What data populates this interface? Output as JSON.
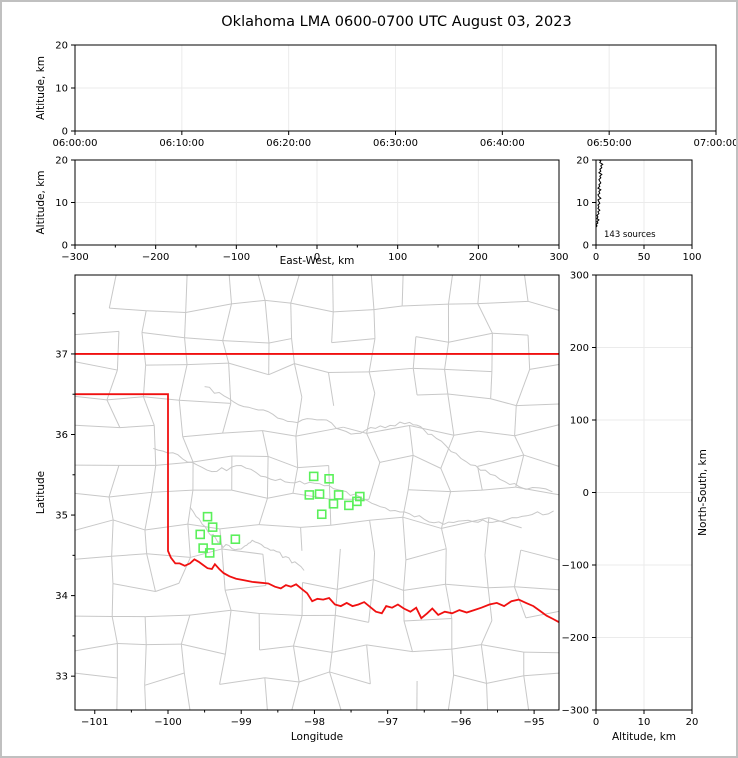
{
  "title": "Oklahoma LMA 0600-0700 UTC August 03, 2023",
  "colors": {
    "axis": "#000000",
    "grid": "#ebebeb",
    "county_line": "#c8c8c8",
    "state_border": "#f01010",
    "source_marker": "#5af05a",
    "histogram_line": "#000000"
  },
  "chart_data": [
    {
      "id": "time_height",
      "type": "scatter",
      "desc": "altitude vs time, no visible sources",
      "xlim": [
        0,
        3600
      ],
      "ylim": [
        0,
        20
      ],
      "xticks": [
        [
          0,
          "06:00:00"
        ],
        [
          600,
          "06:10:00"
        ],
        [
          1200,
          "06:20:00"
        ],
        [
          1800,
          "06:30:00"
        ],
        [
          2400,
          "06:40:00"
        ],
        [
          3000,
          "06:50:00"
        ],
        [
          3600,
          "07:00:00"
        ]
      ],
      "yticks": [
        [
          0,
          "0"
        ],
        [
          10,
          "10"
        ],
        [
          20,
          "20"
        ]
      ],
      "ylabel": "Altitude, km",
      "points": []
    },
    {
      "id": "ew_height",
      "type": "scatter",
      "desc": "altitude vs east-west distance, no visible sources",
      "xlim": [
        -300,
        300
      ],
      "ylim": [
        0,
        20
      ],
      "xticks": [
        [
          -300,
          "−300"
        ],
        [
          -200,
          "−200"
        ],
        [
          -100,
          "−100"
        ],
        [
          0,
          "0"
        ],
        [
          100,
          "100"
        ],
        [
          200,
          "200"
        ],
        [
          300,
          "300"
        ]
      ],
      "xminor": [
        -250,
        -150,
        -50,
        50,
        150,
        250
      ],
      "yticks": [
        [
          0,
          "0"
        ],
        [
          10,
          "10"
        ],
        [
          20,
          "20"
        ]
      ],
      "xlabel": "East-West, km",
      "xlabelpad": 19,
      "ylabel": "Altitude, km",
      "points": []
    },
    {
      "id": "alt_hist",
      "type": "line",
      "desc": "source count profile vs altitude",
      "xlim": [
        0,
        100
      ],
      "ylim": [
        0,
        20
      ],
      "xticks": [
        [
          0,
          "0"
        ],
        [
          50,
          "50"
        ],
        [
          100,
          "100"
        ]
      ],
      "yticks": [
        [
          0,
          "0"
        ],
        [
          10,
          "10"
        ],
        [
          20,
          "20"
        ]
      ],
      "annotation": "143 sources",
      "profile_alt_count": [
        [
          0,
          0
        ],
        [
          4.2,
          0
        ],
        [
          4.5,
          1
        ],
        [
          4.8,
          0
        ],
        [
          5.2,
          2
        ],
        [
          5.5,
          1
        ],
        [
          5.9,
          3
        ],
        [
          6.2,
          1
        ],
        [
          6.6,
          2
        ],
        [
          7.0,
          1
        ],
        [
          7.4,
          3
        ],
        [
          7.8,
          2
        ],
        [
          8.2,
          4
        ],
        [
          8.6,
          2
        ],
        [
          9.0,
          3
        ],
        [
          9.4,
          2
        ],
        [
          9.8,
          4
        ],
        [
          10.2,
          3
        ],
        [
          10.6,
          2
        ],
        [
          11.0,
          5
        ],
        [
          11.4,
          3
        ],
        [
          11.8,
          2
        ],
        [
          12.2,
          4
        ],
        [
          12.6,
          3
        ],
        [
          13.0,
          5
        ],
        [
          13.4,
          2
        ],
        [
          13.8,
          4
        ],
        [
          14.2,
          3
        ],
        [
          14.6,
          5
        ],
        [
          15.0,
          4
        ],
        [
          15.4,
          3
        ],
        [
          15.8,
          5
        ],
        [
          16.2,
          4
        ],
        [
          16.6,
          6
        ],
        [
          17.0,
          3
        ],
        [
          17.4,
          5
        ],
        [
          17.8,
          4
        ],
        [
          18.2,
          6
        ],
        [
          18.6,
          5
        ],
        [
          19.0,
          7
        ],
        [
          19.4,
          4
        ],
        [
          19.8,
          5
        ],
        [
          20,
          3
        ]
      ]
    },
    {
      "id": "map",
      "type": "scatter",
      "desc": "plan view map of Oklahoma with LMA source locations",
      "xlim": [
        -101.27,
        -94.66
      ],
      "ylim": [
        32.58,
        37.98
      ],
      "xticks": [
        [
          -101,
          "−101"
        ],
        [
          -100,
          "−100"
        ],
        [
          -99,
          "−99"
        ],
        [
          -98,
          "−98"
        ],
        [
          -97,
          "−97"
        ],
        [
          -96,
          "−96"
        ],
        [
          -95,
          "−95"
        ]
      ],
      "xminor": [
        -100.5,
        -99.5,
        -98.5,
        -97.5,
        -96.5,
        -95.5
      ],
      "yticks": [
        [
          33,
          "33"
        ],
        [
          34,
          "34"
        ],
        [
          35,
          "35"
        ],
        [
          36,
          "36"
        ],
        [
          37,
          "37"
        ]
      ],
      "yminor": [
        33.5,
        34.5,
        35.5,
        36.5,
        37.5
      ],
      "xlabel": "Longitude",
      "xlabelpad": 30,
      "ylabel": "Latitude",
      "sources_lon_lat": [
        [
          -99.46,
          34.98
        ],
        [
          -99.39,
          34.85
        ],
        [
          -99.56,
          34.76
        ],
        [
          -99.34,
          34.69
        ],
        [
          -99.08,
          34.7
        ],
        [
          -99.52,
          34.59
        ],
        [
          -99.43,
          34.53
        ],
        [
          -98.01,
          35.48
        ],
        [
          -97.8,
          35.45
        ],
        [
          -98.07,
          35.25
        ],
        [
          -97.93,
          35.26
        ],
        [
          -97.67,
          35.25
        ],
        [
          -97.74,
          35.14
        ],
        [
          -97.53,
          35.12
        ],
        [
          -97.42,
          35.17
        ],
        [
          -97.38,
          35.23
        ],
        [
          -97.9,
          35.01
        ]
      ],
      "state_border": {
        "north_lat": 37.0,
        "panhandle_south_lat": 36.5,
        "west_lon": -100.0,
        "west_bottom_lat": 34.555,
        "red_river_lon_lat": [
          [
            -100.0,
            34.555
          ],
          [
            -99.96,
            34.47
          ],
          [
            -99.9,
            34.4
          ],
          [
            -99.84,
            34.4
          ],
          [
            -99.77,
            34.37
          ],
          [
            -99.7,
            34.4
          ],
          [
            -99.64,
            34.45
          ],
          [
            -99.58,
            34.42
          ],
          [
            -99.52,
            34.38
          ],
          [
            -99.46,
            34.34
          ],
          [
            -99.4,
            34.33
          ],
          [
            -99.36,
            34.39
          ],
          [
            -99.3,
            34.33
          ],
          [
            -99.24,
            34.28
          ],
          [
            -99.16,
            34.24
          ],
          [
            -99.07,
            34.21
          ],
          [
            -98.96,
            34.19
          ],
          [
            -98.85,
            34.17
          ],
          [
            -98.74,
            34.16
          ],
          [
            -98.63,
            34.15
          ],
          [
            -98.54,
            34.11
          ],
          [
            -98.46,
            34.09
          ],
          [
            -98.39,
            34.13
          ],
          [
            -98.32,
            34.11
          ],
          [
            -98.25,
            34.14
          ],
          [
            -98.17,
            34.08
          ],
          [
            -98.1,
            34.03
          ],
          [
            -98.03,
            33.93
          ],
          [
            -97.96,
            33.96
          ],
          [
            -97.88,
            33.95
          ],
          [
            -97.8,
            33.97
          ],
          [
            -97.72,
            33.89
          ],
          [
            -97.64,
            33.87
          ],
          [
            -97.56,
            33.91
          ],
          [
            -97.48,
            33.87
          ],
          [
            -97.4,
            33.89
          ],
          [
            -97.32,
            33.92
          ],
          [
            -97.24,
            33.86
          ],
          [
            -97.16,
            33.8
          ],
          [
            -97.08,
            33.78
          ],
          [
            -97.02,
            33.87
          ],
          [
            -96.94,
            33.85
          ],
          [
            -96.86,
            33.89
          ],
          [
            -96.78,
            33.84
          ],
          [
            -96.69,
            33.8
          ],
          [
            -96.61,
            33.85
          ],
          [
            -96.54,
            33.72
          ],
          [
            -96.46,
            33.78
          ],
          [
            -96.39,
            33.84
          ],
          [
            -96.31,
            33.76
          ],
          [
            -96.22,
            33.8
          ],
          [
            -96.12,
            33.78
          ],
          [
            -96.02,
            33.82
          ],
          [
            -95.92,
            33.79
          ],
          [
            -95.82,
            33.82
          ],
          [
            -95.72,
            33.85
          ],
          [
            -95.61,
            33.89
          ],
          [
            -95.51,
            33.91
          ],
          [
            -95.41,
            33.87
          ],
          [
            -95.31,
            33.93
          ],
          [
            -95.21,
            33.95
          ],
          [
            -95.11,
            33.91
          ],
          [
            -95.01,
            33.87
          ],
          [
            -94.92,
            33.81
          ],
          [
            -94.83,
            33.75
          ],
          [
            -94.74,
            33.71
          ],
          [
            -94.66,
            33.67
          ]
        ]
      }
    },
    {
      "id": "ns_height",
      "type": "scatter",
      "desc": "north-south distance vs altitude, no visible sources",
      "xlim": [
        0,
        20
      ],
      "ylim": [
        -300,
        300
      ],
      "xticks": [
        [
          0,
          "0"
        ],
        [
          10,
          "10"
        ],
        [
          20,
          "20"
        ]
      ],
      "yticks": [
        [
          -300,
          "−300"
        ],
        [
          -200,
          "−200"
        ],
        [
          -100,
          "−100"
        ],
        [
          0,
          "0"
        ],
        [
          100,
          "100"
        ],
        [
          200,
          "200"
        ],
        [
          300,
          "300"
        ]
      ],
      "xlabel": "Altitude, km",
      "xlabelpad": 30,
      "ylabel": "North-South, km",
      "ylabel_side": "right",
      "points": []
    }
  ]
}
